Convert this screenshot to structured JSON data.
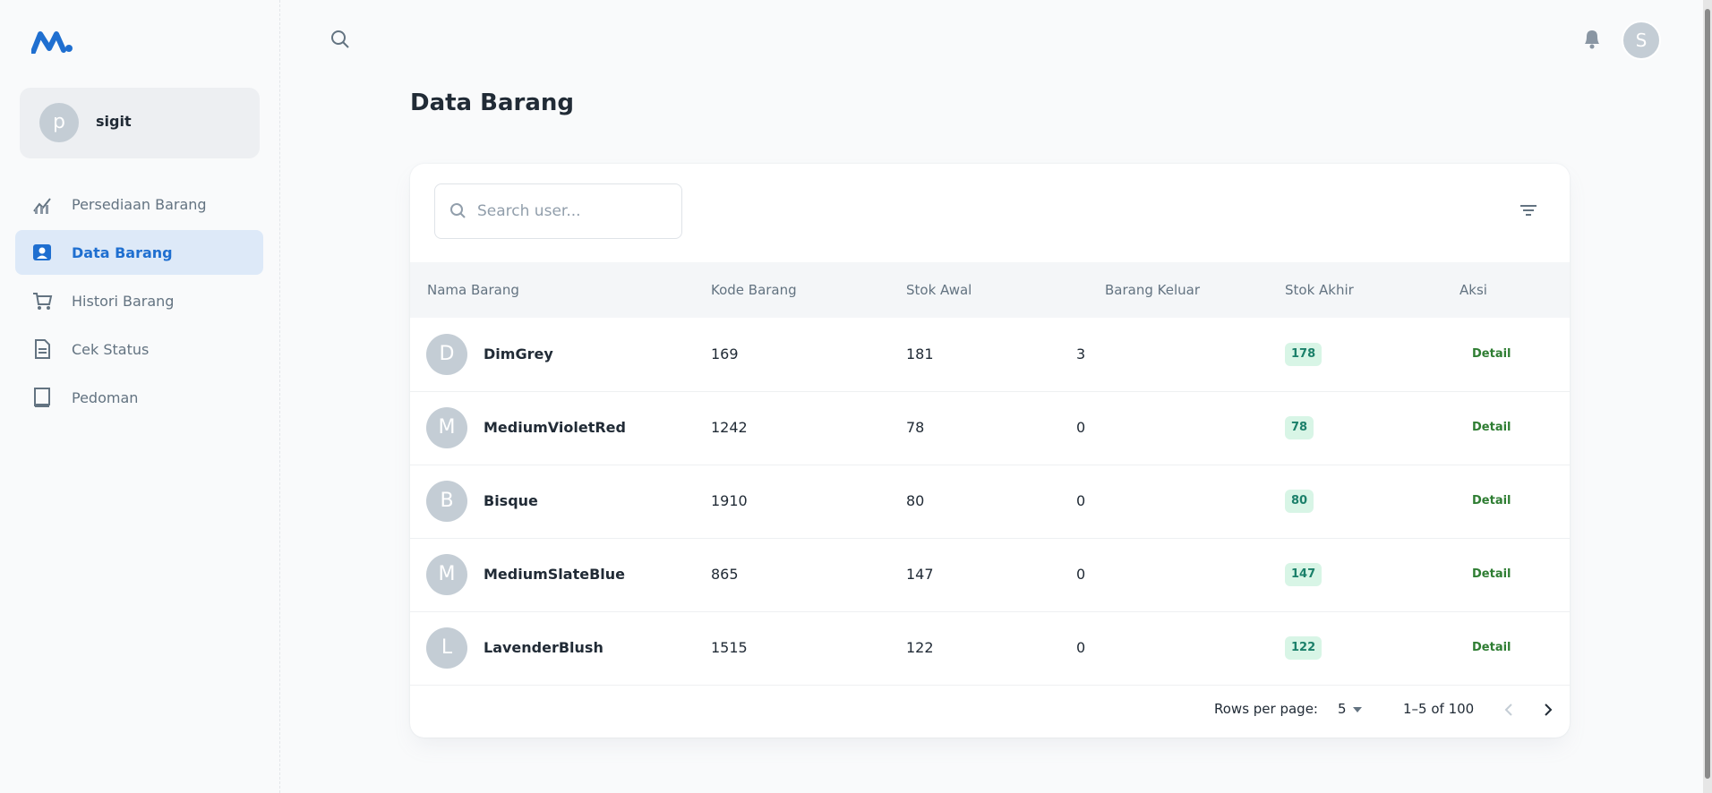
{
  "sidebar": {
    "user": {
      "initial": "p",
      "name": "sigit"
    },
    "nav": [
      "Persediaan Barang",
      "Data Barang",
      "Histori Barang",
      "Cek Status",
      "Pedoman"
    ]
  },
  "topbar": {
    "avatar": "S"
  },
  "page": {
    "title": "Data Barang",
    "search_placeholder": "Search user..."
  },
  "table": {
    "columns": [
      "Nama Barang",
      "Kode Barang",
      "Stok Awal",
      "Barang Keluar",
      "Stok Akhir",
      "Aksi"
    ],
    "rows": [
      [
        "D",
        "DimGrey",
        169,
        181,
        3,
        178,
        "Detail"
      ],
      [
        "M",
        "MediumVioletRed",
        1242,
        78,
        0,
        78,
        "Detail"
      ],
      [
        "B",
        "Bisque",
        1910,
        80,
        0,
        80,
        "Detail"
      ],
      [
        "M",
        "MediumSlateBlue",
        865,
        147,
        0,
        147,
        "Detail"
      ],
      [
        "L",
        "LavenderBlush",
        1515,
        122,
        0,
        122,
        "Detail"
      ]
    ]
  },
  "pagination": {
    "rows_per_page_label": "Rows per page:",
    "rows_per_page": "5",
    "range": "1–5 of 100"
  }
}
